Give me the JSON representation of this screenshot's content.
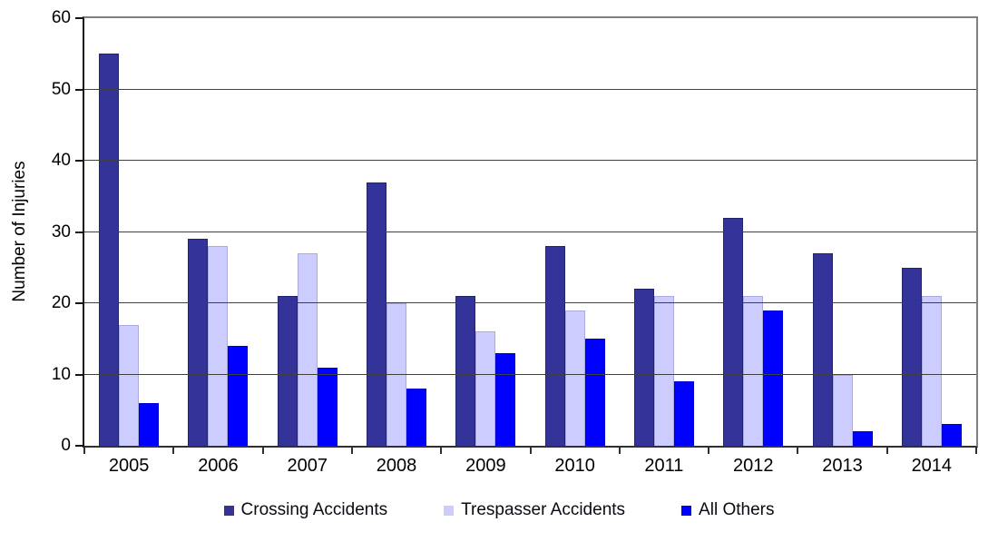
{
  "chart_data": {
    "type": "bar",
    "title": "",
    "xlabel": "",
    "ylabel": "Number of Injuries",
    "ylim": [
      0,
      60
    ],
    "yticks": [
      0,
      10,
      20,
      30,
      40,
      50,
      60
    ],
    "grid": "horizontal",
    "legend_position": "bottom",
    "categories": [
      "2005",
      "2006",
      "2007",
      "2008",
      "2009",
      "2010",
      "2011",
      "2012",
      "2013",
      "2014"
    ],
    "series": [
      {
        "name": "Crossing Accidents",
        "color": "#333399",
        "border_color": "#20246e",
        "values": [
          55,
          29,
          21,
          37,
          21,
          28,
          22,
          32,
          27,
          25
        ]
      },
      {
        "name": "Trespasser Accidents",
        "color": "#CCCCFF",
        "border_color": "#a9a9e0",
        "values": [
          17,
          28,
          27,
          20,
          16,
          19,
          21,
          21,
          10,
          21
        ]
      },
      {
        "name": "All Others",
        "color": "#0000FF",
        "border_color": "#0000cc",
        "values": [
          6,
          14,
          11,
          8,
          13,
          15,
          9,
          19,
          2,
          3
        ]
      }
    ]
  },
  "colors": {
    "background": "#ffffff",
    "gridline": "#404040",
    "plot_border": "#808080",
    "axis": "#141414",
    "text": "#000000"
  }
}
